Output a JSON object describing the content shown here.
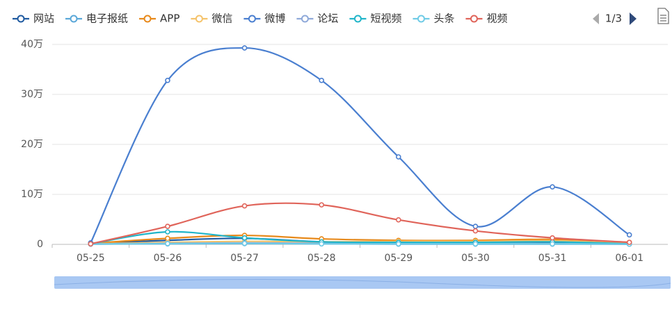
{
  "chart_data": {
    "type": "line",
    "smooth": true,
    "categories": [
      "05-25",
      "05-26",
      "05-27",
      "05-28",
      "05-29",
      "05-30",
      "05-31",
      "06-01"
    ],
    "series": [
      {
        "name": "网站",
        "color": "#1f5aa0",
        "values": [
          2000,
          8000,
          12000,
          5000,
          3000,
          3000,
          4000,
          1000
        ]
      },
      {
        "name": "电子报纸",
        "color": "#5aa7d8",
        "values": [
          500,
          1000,
          1500,
          1000,
          500,
          500,
          500,
          200
        ]
      },
      {
        "name": "APP",
        "color": "#e8891a",
        "values": [
          2000,
          12000,
          18000,
          11000,
          8000,
          8000,
          10000,
          4000
        ]
      },
      {
        "name": "微信",
        "color": "#f5c36b",
        "values": [
          1000,
          4000,
          6000,
          5000,
          6000,
          6000,
          7000,
          2000
        ]
      },
      {
        "name": "微博",
        "color": "#4a7fd0",
        "values": [
          3000,
          328000,
          393000,
          328000,
          175000,
          36000,
          115000,
          19000
        ]
      },
      {
        "name": "论坛",
        "color": "#8fa9d9",
        "values": [
          500,
          2000,
          3000,
          2000,
          1500,
          1500,
          1500,
          500
        ]
      },
      {
        "name": "短视频",
        "color": "#20b5c9",
        "values": [
          1000,
          25000,
          13000,
          5000,
          4000,
          4000,
          5000,
          1000
        ]
      },
      {
        "name": "头条",
        "color": "#6fcbe6",
        "values": [
          500,
          1500,
          2000,
          1000,
          1000,
          1000,
          1000,
          500
        ]
      },
      {
        "name": "视频",
        "color": "#e0645a",
        "values": [
          1000,
          36000,
          77000,
          79000,
          49000,
          27000,
          13000,
          4000
        ]
      }
    ],
    "ylim": [
      0,
      400000
    ],
    "yticks": [
      0,
      {
        "value": 100000,
        "label": "10万"
      },
      {
        "value": 200000,
        "label": "20万"
      },
      {
        "value": 300000,
        "label": "30万"
      },
      {
        "value": 400000,
        "label": "40万"
      }
    ],
    "grid": true,
    "legend": "top",
    "legend_page": "1/3"
  }
}
